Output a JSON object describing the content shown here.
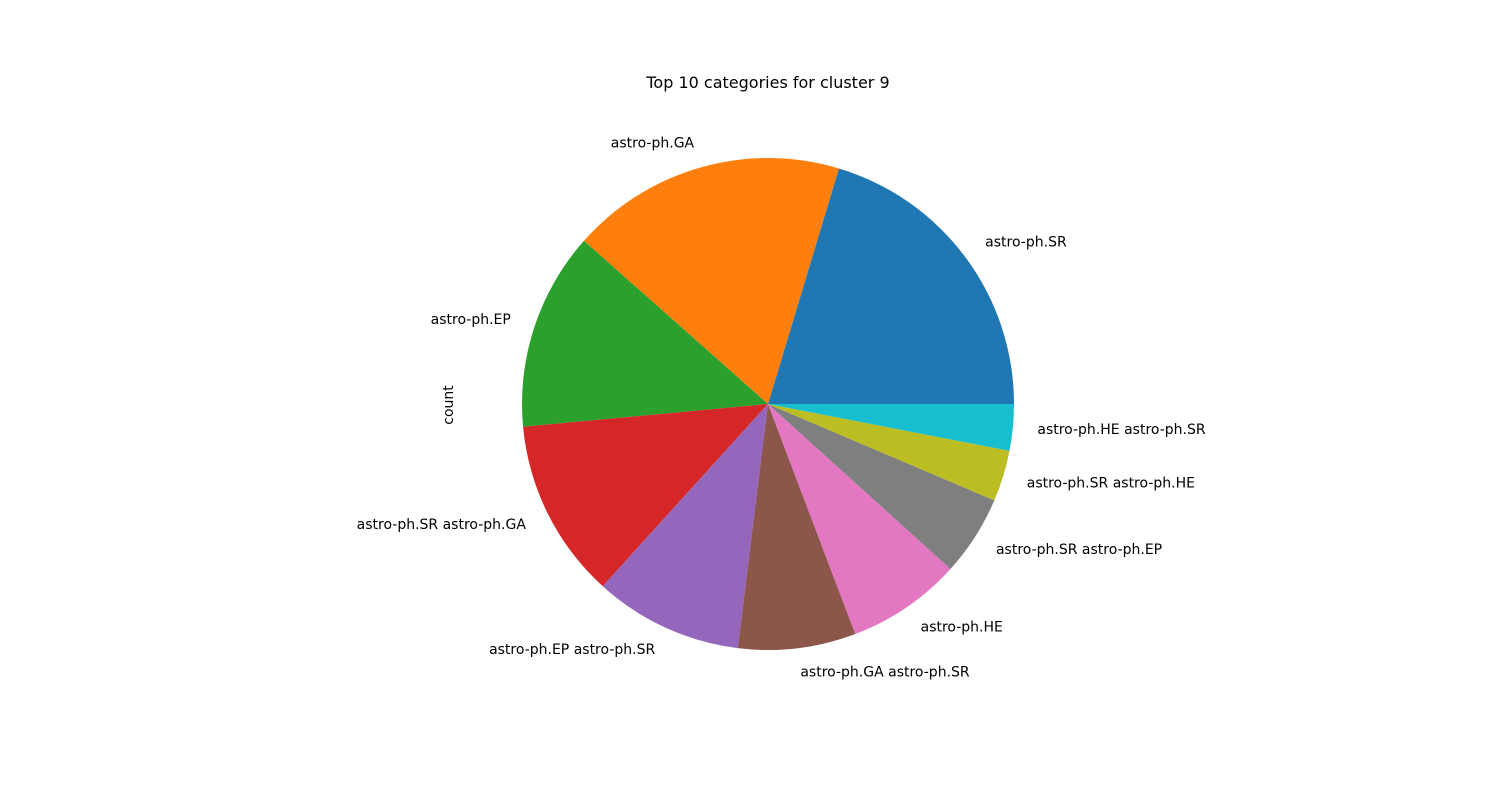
{
  "chart_data": {
    "type": "pie",
    "title": "Top 10 categories for cluster 9",
    "ylabel": "count",
    "categories": [
      "astro-ph.SR",
      "astro-ph.GA",
      "astro-ph.EP",
      "astro-ph.SR astro-ph.GA",
      "astro-ph.EP astro-ph.SR",
      "astro-ph.GA astro-ph.SR",
      "astro-ph.HE",
      "astro-ph.SR astro-ph.EP",
      "astro-ph.SR astro-ph.HE",
      "astro-ph.HE astro-ph.SR"
    ],
    "values": [
      20.0,
      17.8,
      12.8,
      11.6,
      9.6,
      7.6,
      7.4,
      5.2,
      3.3,
      3.0
    ],
    "colors": [
      "#1f77b4",
      "#ff7f0e",
      "#2ca02c",
      "#d62728",
      "#9467bd",
      "#8c564b",
      "#e377c2",
      "#7f7f7f",
      "#bcbd22",
      "#17becf"
    ],
    "start_angle_deg": 0,
    "direction": "counterclockwise",
    "legend": "none"
  }
}
